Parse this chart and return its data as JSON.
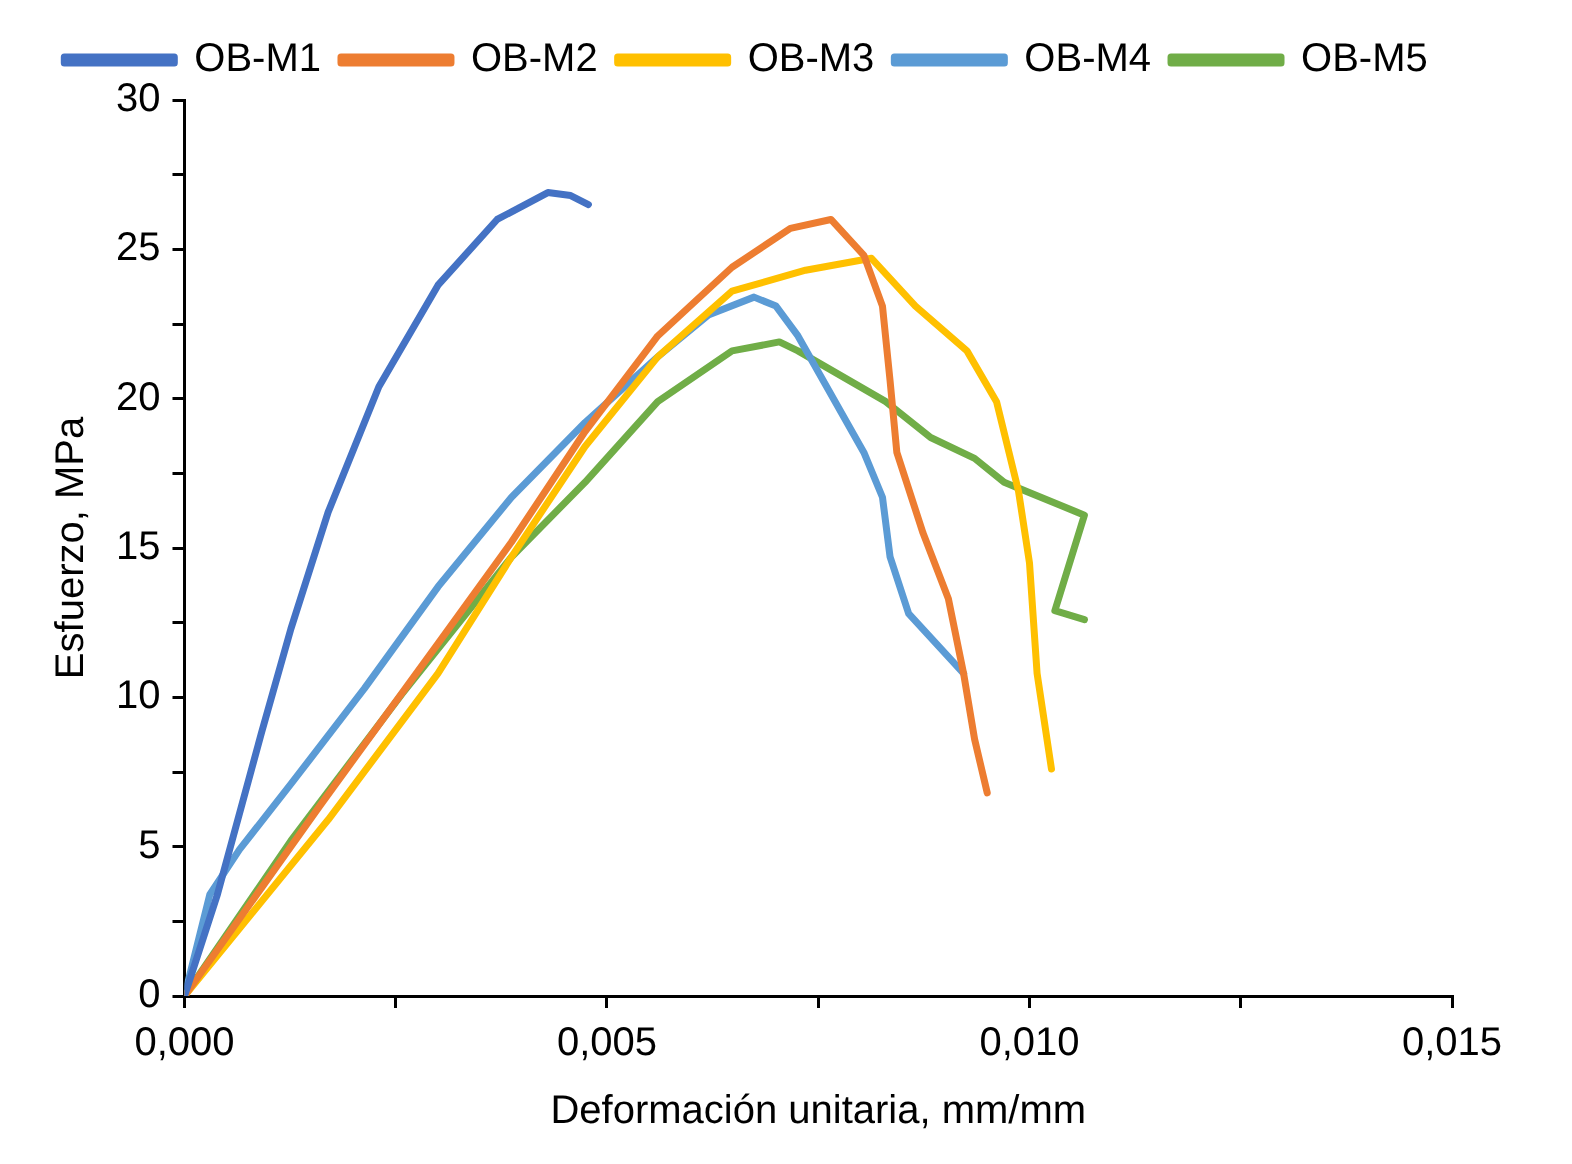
{
  "chart_data": {
    "type": "line",
    "xlabel": "Deformación unitaria, mm/mm",
    "ylabel": "Esfuerzo, MPa",
    "xlim": [
      0,
      0.015
    ],
    "xticks": [
      {
        "value": 0,
        "label": "0,000"
      },
      {
        "value": 0.0025,
        "label": null
      },
      {
        "value": 0.005,
        "label": "0,005"
      },
      {
        "value": 0.0075,
        "label": null
      },
      {
        "value": 0.01,
        "label": "0,010"
      },
      {
        "value": 0.0125,
        "label": null
      },
      {
        "value": 0.015,
        "label": "0,015"
      }
    ],
    "ylim": [
      0,
      30
    ],
    "yticks": [
      0,
      {
        "value": 2.5,
        "label": null
      },
      5,
      {
        "value": 7.5,
        "label": null
      },
      10,
      {
        "value": 12.5,
        "label": null
      },
      15,
      {
        "value": 17.5,
        "label": null
      },
      20,
      {
        "value": 22.5,
        "label": null
      },
      25,
      {
        "value": 27.5,
        "label": null
      },
      30
    ],
    "grid": false,
    "legend": "top",
    "marker": "none",
    "line_style": "solid",
    "series": [
      {
        "name": "OB-M1",
        "color": "#4472c4",
        "x": [
          0,
          0.00039,
          0.00091,
          0.00126,
          0.0017,
          0.0023,
          0.003,
          0.0037,
          0.0043,
          0.00457,
          0.00478
        ],
        "values": [
          0,
          3.4,
          8.8,
          12.3,
          16.2,
          20.4,
          23.8,
          26.0,
          26.9,
          26.8,
          26.5
        ]
      },
      {
        "name": "OB-M2",
        "color": "#ed7d31",
        "x": [
          0,
          0.00161,
          0.003,
          0.00387,
          0.00474,
          0.0056,
          0.00648,
          0.00717,
          0.00765,
          0.00804,
          0.00826,
          0.00835,
          0.00843,
          0.00874,
          0.00904,
          0.00922,
          0.00935,
          0.0095
        ],
        "values": [
          0,
          6.4,
          11.8,
          15.2,
          18.9,
          22.1,
          24.4,
          25.7,
          26.0,
          24.8,
          23.1,
          20.6,
          18.2,
          15.5,
          13.3,
          10.8,
          8.6,
          6.8
        ]
      },
      {
        "name": "OB-M3",
        "color": "#ffc000",
        "x": [
          0,
          0.0017,
          0.003,
          0.00387,
          0.00474,
          0.0056,
          0.00648,
          0.00735,
          0.00813,
          0.00865,
          0.00926,
          0.00961,
          0.00987,
          0.01,
          0.01009,
          0.01026
        ],
        "values": [
          0,
          5.9,
          10.8,
          14.7,
          18.4,
          21.4,
          23.6,
          24.3,
          24.7,
          23.1,
          21.6,
          19.9,
          16.9,
          14.5,
          10.8,
          7.6
        ]
      },
      {
        "name": "OB-M4",
        "color": "#5b9bd5",
        "x": [
          0,
          0.0003,
          0.00065,
          0.00126,
          0.00213,
          0.003,
          0.00387,
          0.00474,
          0.0056,
          0.0062,
          0.00674,
          0.007,
          0.00726,
          0.0076,
          0.00804,
          0.00826,
          0.00835,
          0.00857,
          0.00922
        ],
        "values": [
          0,
          3.4,
          4.9,
          7.1,
          10.3,
          13.7,
          16.7,
          19.2,
          21.4,
          22.8,
          23.4,
          23.1,
          22.1,
          20.4,
          18.2,
          16.7,
          14.7,
          12.8,
          10.8
        ]
      },
      {
        "name": "OB-M5",
        "color": "#70ad47",
        "x": [
          0,
          0.00126,
          0.00257,
          0.00387,
          0.00474,
          0.0056,
          0.00648,
          0.00704,
          0.00726,
          0.0083,
          0.00883,
          0.00935,
          0.0097,
          0.01065,
          0.0103,
          0.01065
        ],
        "values": [
          0,
          5.2,
          10.1,
          14.7,
          17.2,
          19.9,
          21.6,
          21.9,
          21.6,
          19.9,
          18.7,
          18.0,
          17.2,
          16.1,
          12.9,
          12.6
        ]
      }
    ]
  }
}
